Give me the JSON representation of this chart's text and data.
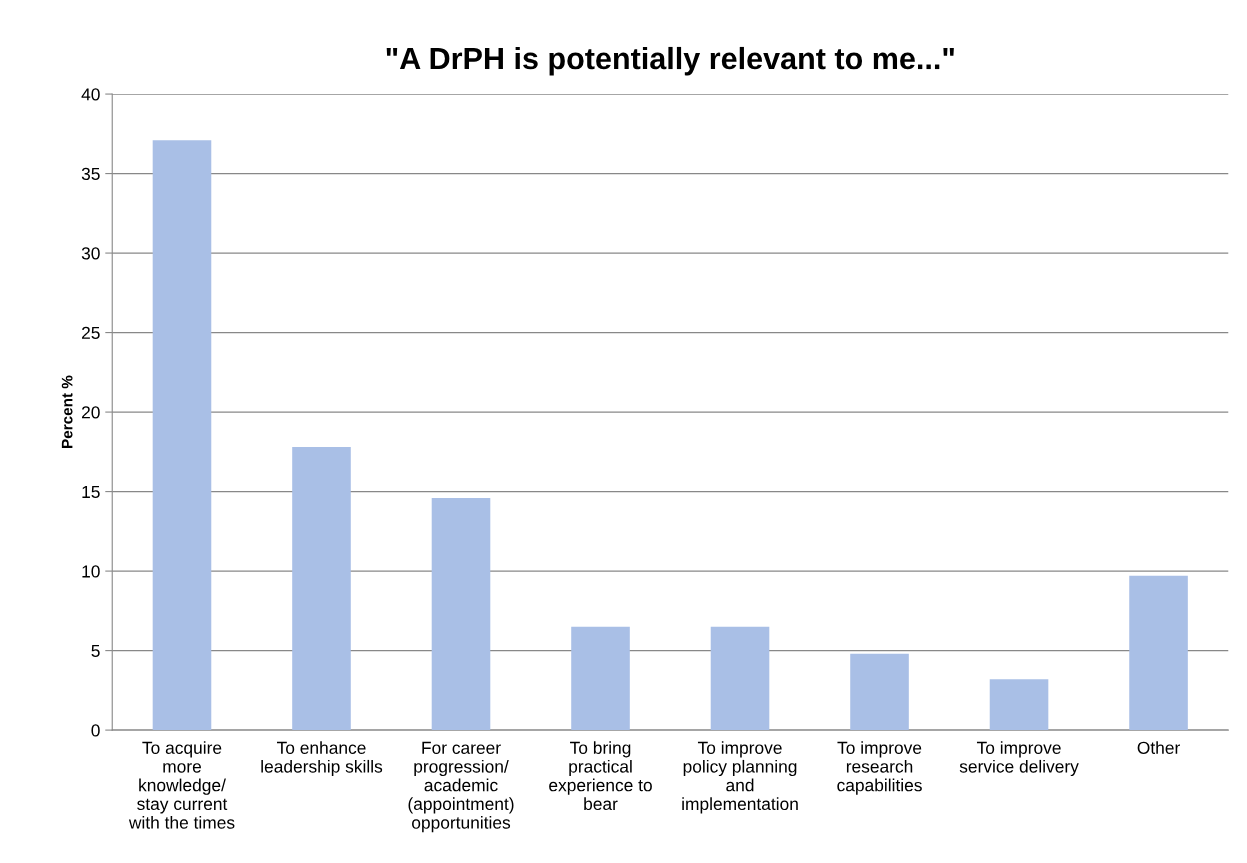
{
  "chart_data": {
    "type": "bar",
    "title": "\"A DrPH is potentially relevant to me...\"",
    "ylabel": "Percent %",
    "categories": [
      "To acquire\nmore\nknowledge/\nstay current\nwith the times",
      "To enhance\nleadership skills",
      "For career\nprogression/\nacademic\n(appointment)\nopportunities",
      "To bring\npractical\nexperience to\nbear",
      "To improve\npolicy planning\nand\nimplementation",
      "To improve\nresearch\ncapabilities",
      "To improve\nservice delivery",
      "Other"
    ],
    "values": [
      37.1,
      17.8,
      14.6,
      6.5,
      6.5,
      4.8,
      3.2,
      9.7
    ],
    "color": "#a9bfe6",
    "ylim": [
      0,
      40
    ],
    "yticks": [
      0,
      5,
      10,
      15,
      20,
      25,
      30,
      35,
      40
    ],
    "grid": "y",
    "legend": false
  }
}
